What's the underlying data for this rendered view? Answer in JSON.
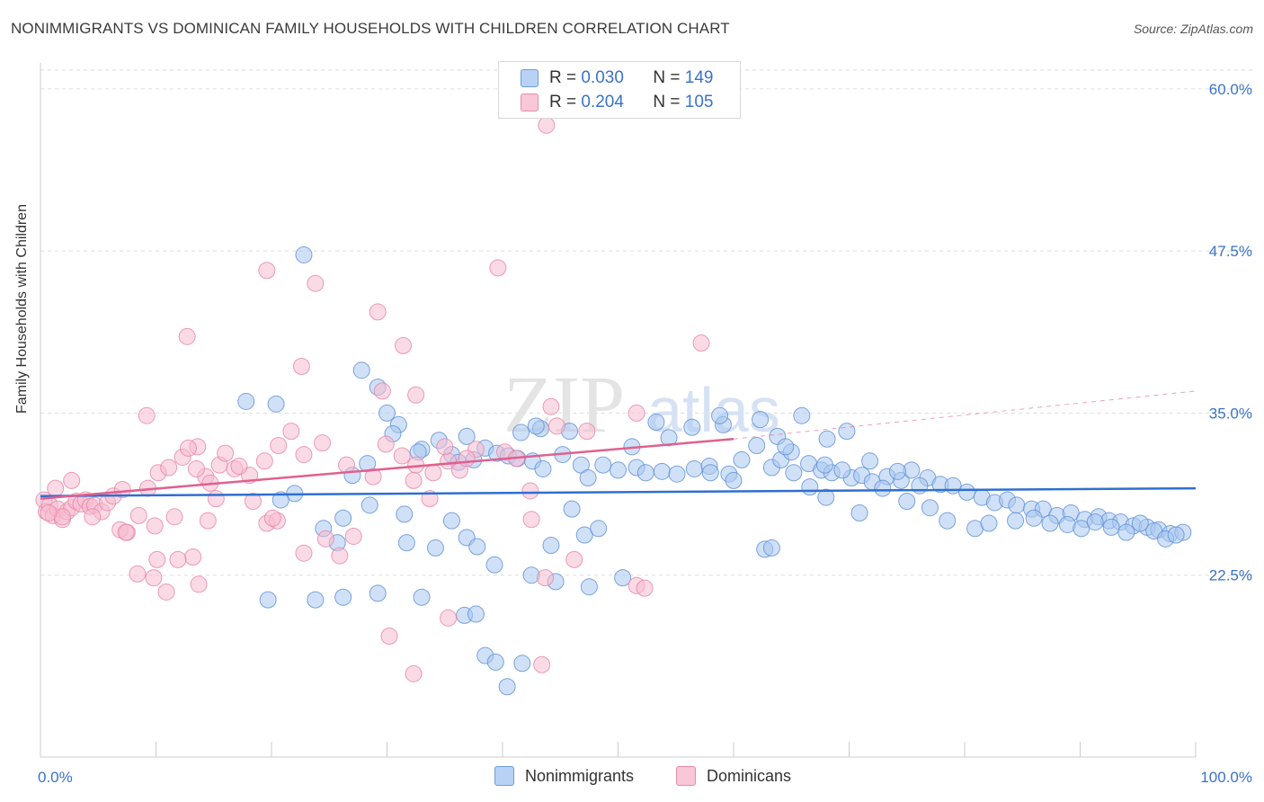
{
  "header": {
    "title": "NONIMMIGRANTS VS DOMINICAN FAMILY HOUSEHOLDS WITH CHILDREN CORRELATION CHART",
    "source": "Source: ZipAtlas.com"
  },
  "legend_top": {
    "rows": [
      {
        "r_label": "R =",
        "r_value": "0.030",
        "n_label": "N =",
        "n_value": "149"
      },
      {
        "r_label": "R =",
        "r_value": "0.204",
        "n_label": "N =",
        "n_value": "105"
      }
    ]
  },
  "legend_bottom": {
    "items": [
      "Nonimmigrants",
      "Dominicans"
    ]
  },
  "watermark": {
    "zip": "ZIP",
    "atlas": "atlas"
  },
  "colors": {
    "blue_fill": "#a9c8f0",
    "blue_stroke": "#5e8fd6",
    "blue_line": "#2f6fd0",
    "pink_fill": "#f6bcd0",
    "pink_stroke": "#e784a8",
    "pink_line": "#e0608e",
    "axis_text": "#3a72c9",
    "grid": "#dddddd"
  },
  "chart_data": {
    "type": "scatter",
    "title": "NONIMMIGRANTS VS DOMINICAN FAMILY HOUSEHOLDS WITH CHILDREN CORRELATION CHART",
    "xlabel": "",
    "ylabel": "Family Households with Children",
    "xlim": [
      0,
      100
    ],
    "ylim": [
      10,
      62
    ],
    "x_tick_labels": [
      "0.0%",
      "100.0%"
    ],
    "y_ticks": [
      22.5,
      35.0,
      47.5,
      60.0
    ],
    "y_tick_labels": [
      "22.5%",
      "35.0%",
      "47.5%",
      "60.0%"
    ],
    "grid": true,
    "legend_position": "top-center",
    "series": [
      {
        "name": "Nonimmigrants",
        "color": "#a9c8f0",
        "trend": {
          "x": [
            0,
            100
          ],
          "y": [
            28.6,
            29.2
          ]
        },
        "points": [
          [
            22.8,
            47.2
          ],
          [
            27.8,
            38.3
          ],
          [
            29.2,
            37.0
          ],
          [
            30.0,
            35.0
          ],
          [
            31.0,
            34.1
          ],
          [
            28.3,
            31.1
          ],
          [
            17.8,
            35.9
          ],
          [
            20.4,
            35.7
          ],
          [
            30.5,
            33.4
          ],
          [
            33.0,
            32.2
          ],
          [
            34.5,
            32.9
          ],
          [
            35.6,
            31.8
          ],
          [
            36.2,
            31.2
          ],
          [
            37.5,
            31.4
          ],
          [
            38.5,
            32.3
          ],
          [
            39.5,
            31.9
          ],
          [
            40.5,
            31.7
          ],
          [
            41.3,
            31.5
          ],
          [
            42.6,
            31.3
          ],
          [
            43.5,
            30.7
          ],
          [
            45.2,
            31.8
          ],
          [
            46.8,
            31.0
          ],
          [
            47.4,
            30.0
          ],
          [
            48.7,
            31.0
          ],
          [
            50.0,
            30.6
          ],
          [
            51.6,
            30.8
          ],
          [
            52.4,
            30.4
          ],
          [
            53.8,
            30.5
          ],
          [
            55.1,
            30.3
          ],
          [
            56.6,
            30.7
          ],
          [
            57.9,
            30.9
          ],
          [
            59.6,
            30.3
          ],
          [
            60.7,
            31.4
          ],
          [
            62.0,
            32.5
          ],
          [
            63.3,
            30.8
          ],
          [
            64.1,
            31.4
          ],
          [
            65.2,
            30.4
          ],
          [
            66.5,
            31.1
          ],
          [
            67.6,
            30.6
          ],
          [
            68.5,
            30.4
          ],
          [
            70.2,
            30.0
          ],
          [
            71.1,
            30.2
          ],
          [
            72.0,
            29.7
          ],
          [
            73.3,
            30.1
          ],
          [
            74.5,
            29.8
          ],
          [
            75.4,
            30.6
          ],
          [
            76.8,
            30.0
          ],
          [
            77.9,
            29.5
          ],
          [
            79.0,
            29.4
          ],
          [
            80.2,
            28.9
          ],
          [
            81.5,
            28.5
          ],
          [
            82.6,
            28.1
          ],
          [
            83.7,
            28.3
          ],
          [
            84.5,
            27.9
          ],
          [
            85.8,
            27.6
          ],
          [
            86.8,
            27.6
          ],
          [
            88.0,
            27.1
          ],
          [
            89.2,
            27.3
          ],
          [
            90.4,
            26.8
          ],
          [
            91.6,
            27.0
          ],
          [
            92.5,
            26.7
          ],
          [
            93.5,
            26.6
          ],
          [
            94.6,
            26.3
          ],
          [
            95.8,
            26.2
          ],
          [
            96.8,
            26.0
          ],
          [
            97.8,
            25.7
          ],
          [
            98.9,
            25.8
          ],
          [
            36.9,
            33.2
          ],
          [
            32.7,
            32.0
          ],
          [
            41.6,
            33.5
          ],
          [
            43.3,
            33.8
          ],
          [
            45.8,
            33.6
          ],
          [
            51.2,
            32.4
          ],
          [
            54.4,
            33.1
          ],
          [
            56.4,
            33.9
          ],
          [
            59.1,
            34.1
          ],
          [
            63.8,
            33.2
          ],
          [
            65.0,
            32.0
          ],
          [
            67.9,
            31.0
          ],
          [
            71.8,
            31.3
          ],
          [
            74.2,
            30.5
          ],
          [
            76.1,
            29.4
          ],
          [
            27.0,
            30.2
          ],
          [
            22.0,
            28.8
          ],
          [
            20.8,
            28.3
          ],
          [
            26.2,
            26.9
          ],
          [
            24.5,
            26.1
          ],
          [
            25.7,
            25.0
          ],
          [
            28.5,
            27.9
          ],
          [
            31.5,
            27.2
          ],
          [
            35.6,
            26.7
          ],
          [
            36.9,
            25.4
          ],
          [
            37.8,
            24.7
          ],
          [
            39.3,
            23.3
          ],
          [
            42.5,
            22.5
          ],
          [
            44.6,
            22.0
          ],
          [
            47.5,
            21.6
          ],
          [
            50.4,
            22.3
          ],
          [
            19.7,
            20.6
          ],
          [
            23.8,
            20.6
          ],
          [
            26.2,
            20.8
          ],
          [
            29.2,
            21.1
          ],
          [
            33.0,
            20.8
          ],
          [
            36.7,
            19.4
          ],
          [
            38.5,
            16.3
          ],
          [
            39.4,
            15.8
          ],
          [
            40.4,
            13.9
          ],
          [
            41.7,
            15.7
          ],
          [
            37.7,
            19.5
          ],
          [
            47.1,
            25.6
          ],
          [
            31.7,
            25.0
          ],
          [
            34.2,
            24.6
          ],
          [
            44.2,
            24.8
          ],
          [
            46.0,
            27.6
          ],
          [
            48.3,
            26.1
          ],
          [
            58.0,
            30.4
          ],
          [
            60.0,
            29.8
          ],
          [
            69.4,
            30.6
          ],
          [
            70.9,
            27.3
          ],
          [
            62.7,
            24.5
          ],
          [
            63.3,
            24.6
          ],
          [
            66.6,
            29.3
          ],
          [
            68.0,
            28.5
          ],
          [
            72.9,
            29.2
          ],
          [
            75.0,
            28.2
          ],
          [
            77.0,
            27.7
          ],
          [
            78.5,
            26.7
          ],
          [
            80.9,
            26.1
          ],
          [
            82.1,
            26.5
          ],
          [
            84.4,
            26.7
          ],
          [
            86.0,
            26.9
          ],
          [
            87.4,
            26.5
          ],
          [
            88.9,
            26.4
          ],
          [
            90.1,
            26.1
          ],
          [
            91.3,
            26.6
          ],
          [
            92.7,
            26.2
          ],
          [
            94.0,
            25.8
          ],
          [
            95.2,
            26.5
          ],
          [
            96.4,
            25.9
          ],
          [
            97.4,
            25.3
          ],
          [
            98.3,
            25.6
          ],
          [
            42.9,
            34.0
          ],
          [
            53.3,
            34.3
          ],
          [
            58.8,
            34.8
          ],
          [
            62.3,
            34.5
          ],
          [
            64.5,
            32.4
          ],
          [
            65.9,
            34.8
          ],
          [
            68.1,
            33.0
          ],
          [
            69.8,
            33.6
          ]
        ]
      },
      {
        "name": "Dominicans",
        "color": "#f6bcd0",
        "trend": {
          "x": [
            0,
            60
          ],
          "y": [
            28.4,
            33.0
          ],
          "dashed_to": {
            "x": 100,
            "y": 36.7
          }
        },
        "points": [
          [
            0.3,
            28.3
          ],
          [
            0.5,
            27.4
          ],
          [
            0.8,
            27.9
          ],
          [
            1.1,
            27.1
          ],
          [
            1.5,
            27.6
          ],
          [
            1.9,
            26.8
          ],
          [
            2.3,
            27.4
          ],
          [
            2.7,
            27.7
          ],
          [
            3.1,
            28.2
          ],
          [
            3.5,
            28.0
          ],
          [
            3.9,
            28.3
          ],
          [
            4.3,
            27.8
          ],
          [
            4.7,
            27.9
          ],
          [
            5.3,
            27.4
          ],
          [
            5.8,
            28.1
          ],
          [
            6.3,
            28.6
          ],
          [
            1.3,
            29.2
          ],
          [
            2.7,
            29.8
          ],
          [
            4.5,
            27.0
          ],
          [
            6.9,
            26.0
          ],
          [
            7.5,
            25.8
          ],
          [
            8.5,
            27.1
          ],
          [
            9.3,
            29.2
          ],
          [
            10.2,
            30.4
          ],
          [
            11.1,
            30.8
          ],
          [
            12.3,
            31.6
          ],
          [
            13.6,
            32.4
          ],
          [
            14.3,
            30.1
          ],
          [
            15.5,
            31.0
          ],
          [
            16.8,
            30.7
          ],
          [
            18.1,
            30.2
          ],
          [
            19.4,
            31.3
          ],
          [
            20.6,
            32.5
          ],
          [
            21.7,
            33.6
          ],
          [
            22.8,
            31.8
          ],
          [
            24.4,
            32.7
          ],
          [
            26.5,
            31.0
          ],
          [
            28.8,
            30.1
          ],
          [
            29.9,
            32.6
          ],
          [
            31.3,
            31.7
          ],
          [
            32.5,
            31.0
          ],
          [
            34.0,
            30.4
          ],
          [
            35.3,
            31.3
          ],
          [
            36.3,
            30.6
          ],
          [
            37.7,
            32.2
          ],
          [
            40.2,
            32.0
          ],
          [
            41.2,
            31.5
          ],
          [
            42.4,
            29.0
          ],
          [
            12.8,
            32.3
          ],
          [
            13.5,
            30.7
          ],
          [
            14.7,
            29.6
          ],
          [
            16.0,
            31.9
          ],
          [
            17.2,
            30.9
          ],
          [
            18.4,
            28.2
          ],
          [
            19.6,
            26.5
          ],
          [
            20.5,
            26.7
          ],
          [
            13.2,
            23.9
          ],
          [
            11.9,
            23.7
          ],
          [
            10.1,
            23.7
          ],
          [
            8.4,
            22.6
          ],
          [
            7.4,
            25.8
          ],
          [
            9.9,
            26.3
          ],
          [
            14.5,
            26.7
          ],
          [
            15.2,
            28.4
          ],
          [
            11.6,
            27.0
          ],
          [
            7.1,
            29.1
          ],
          [
            1.9,
            27.0
          ],
          [
            0.7,
            27.3
          ],
          [
            9.2,
            34.8
          ],
          [
            12.7,
            40.9
          ],
          [
            19.6,
            46.0
          ],
          [
            22.6,
            38.6
          ],
          [
            23.8,
            45.0
          ],
          [
            29.2,
            42.8
          ],
          [
            31.4,
            40.2
          ],
          [
            39.6,
            46.2
          ],
          [
            57.2,
            40.4
          ],
          [
            32.5,
            36.4
          ],
          [
            29.6,
            36.7
          ],
          [
            44.7,
            34.0
          ],
          [
            47.3,
            33.6
          ],
          [
            51.6,
            35.0
          ],
          [
            36.9,
            31.5
          ],
          [
            35.0,
            32.4
          ],
          [
            32.3,
            29.8
          ],
          [
            27.1,
            25.5
          ],
          [
            24.7,
            25.3
          ],
          [
            25.9,
            24.0
          ],
          [
            22.8,
            24.2
          ],
          [
            20.1,
            26.9
          ],
          [
            46.2,
            23.7
          ],
          [
            43.7,
            22.3
          ],
          [
            51.6,
            21.7
          ],
          [
            52.3,
            21.5
          ],
          [
            35.3,
            19.2
          ],
          [
            30.2,
            17.8
          ],
          [
            32.3,
            14.9
          ],
          [
            43.4,
            15.6
          ],
          [
            42.5,
            26.8
          ],
          [
            33.7,
            28.4
          ],
          [
            13.7,
            21.8
          ],
          [
            10.9,
            21.2
          ],
          [
            9.8,
            22.3
          ],
          [
            44.2,
            35.5
          ],
          [
            43.8,
            57.2
          ]
        ]
      }
    ]
  }
}
